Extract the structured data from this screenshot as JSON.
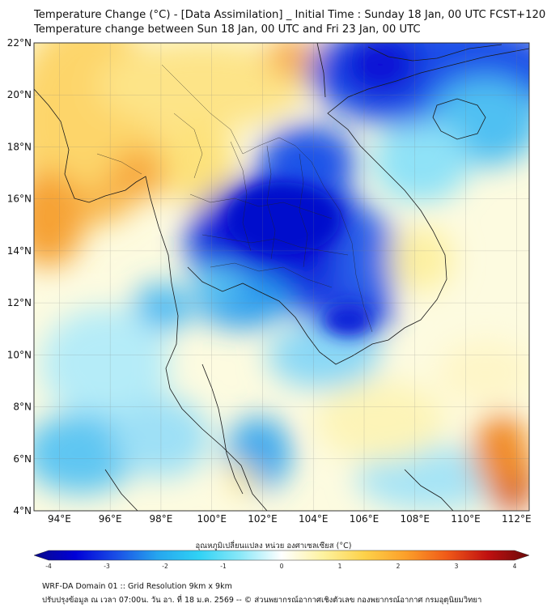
{
  "header": {
    "title_line1": "Temperature Change (°C) - [Data Assimilation] _ Initial Time : Sunday 18 Jan, 00 UTC FCST+120",
    "title_line2": "Temperature change between Sun 18 Jan, 00 UTC and Fri 23 Jan, 00 UTC"
  },
  "map": {
    "lat_labels": [
      "22°N",
      "20°N",
      "18°N",
      "16°N",
      "14°N",
      "12°N",
      "10°N",
      "8°N",
      "6°N",
      "4°N"
    ],
    "lon_labels": [
      "94°E",
      "96°E",
      "98°E",
      "100°E",
      "102°E",
      "104°E",
      "106°E",
      "108°E",
      "110°E",
      "112°E"
    ],
    "lat_range": [
      4,
      22
    ],
    "lon_range": [
      93,
      112.5
    ]
  },
  "colorbar": {
    "title": "อุณหภูมิเปลี่ยนแปลง หน่วย องศาเซลเซียส (°C)",
    "ticks": [
      "-4",
      "-3",
      "-2",
      "-1",
      "0",
      "1",
      "2",
      "3",
      "4"
    ],
    "range": [
      -4,
      4
    ],
    "colors": [
      "#0a0a8a",
      "#0000d8",
      "#1a4fe6",
      "#26a6ee",
      "#30d2f5",
      "#8ae8f8",
      "#ffffff",
      "#fdf2a0",
      "#fdd24a",
      "#fca02a",
      "#f05a18",
      "#c01010",
      "#6a0a0a"
    ]
  },
  "footer": {
    "line1": "WRF-DA Domain 01 :: Grid Resolution 9km x 9km",
    "line2": "ปรับปรุงข้อมูล ณ เวลา 07:00น. วัน อา. ที่ 18 ม.ค. 2569 -- © ส่วนพยากรณ์อากาศเชิงตัวเลข กองพยากรณ์อากาศ กรมอุตุนิยมวิทยา"
  }
}
